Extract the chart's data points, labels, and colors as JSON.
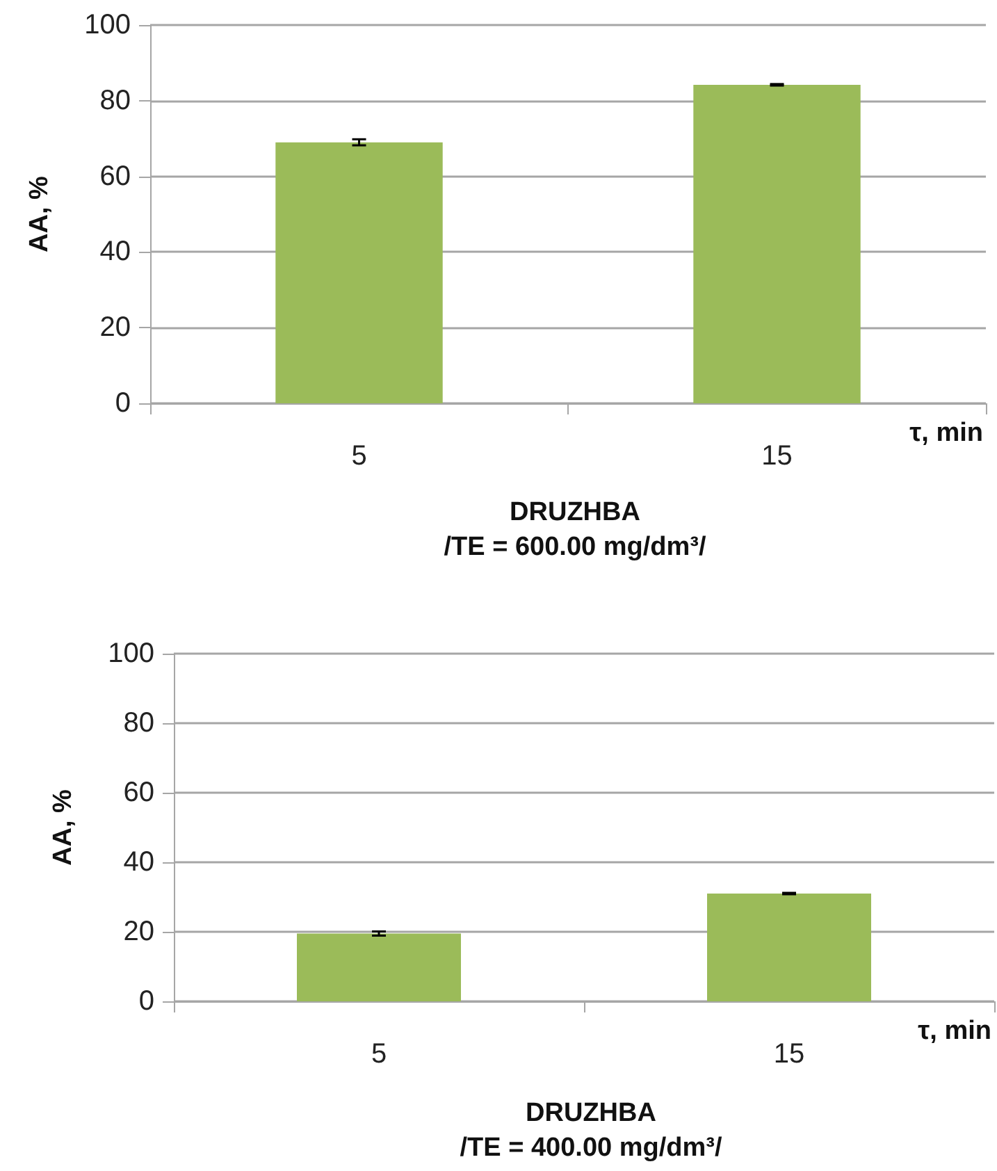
{
  "chart_data": [
    {
      "type": "bar",
      "title": "DRUZHBA",
      "subtitle": "/TE = 600.00 mg/dm³/",
      "xlabel": "τ, min",
      "ylabel": "AA, %",
      "categories": [
        "5",
        "15"
      ],
      "series": [
        {
          "color": "#9bbb59",
          "values": [
            69,
            84.2
          ],
          "errors": [
            0.8,
            0.2
          ]
        }
      ],
      "ylim": [
        0,
        100
      ],
      "yticks": [
        0,
        20,
        40,
        60,
        80,
        100
      ],
      "grid": "y"
    },
    {
      "type": "bar",
      "title": "DRUZHBA",
      "subtitle": "/TE = 400.00 mg/dm³/",
      "xlabel": "τ, min",
      "ylabel": "AA, %",
      "categories": [
        "5",
        "15"
      ],
      "series": [
        {
          "color": "#9bbb59",
          "values": [
            19.5,
            31
          ],
          "errors": [
            0.6,
            0.2
          ]
        }
      ],
      "ylim": [
        0,
        100
      ],
      "yticks": [
        0,
        20,
        40,
        60,
        80,
        100
      ],
      "grid": "y"
    }
  ]
}
